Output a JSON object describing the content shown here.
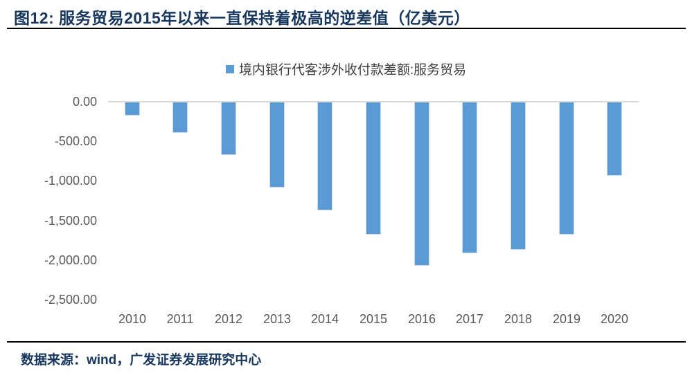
{
  "header": {
    "title": "图12:  服务贸易2015年以来一直保持着极高的逆差值（亿美元）"
  },
  "footer": {
    "source": "数据来源：wind，广发证券发展研究中心"
  },
  "colors": {
    "title_text": "#17375E",
    "rule": "#000000",
    "bar_fill": "#5B9BD5",
    "bar_border": "#C9DCF2",
    "axis_line": "#D9D9D9",
    "tick_text": "#595959",
    "legend_text": "#3F3F3F"
  },
  "chart_data": {
    "type": "bar",
    "title": "图12:  服务贸易2015年以来一直保持着极高的逆差值（亿美元）",
    "legend_label": "境内银行代客涉外收付款差额:服务贸易",
    "legend_position": "top-center",
    "categories": [
      "2010",
      "2011",
      "2012",
      "2013",
      "2014",
      "2015",
      "2016",
      "2017",
      "2018",
      "2019",
      "2020"
    ],
    "series": [
      {
        "name": "境内银行代客涉外收付款差额:服务贸易",
        "values": [
          -175,
          -395,
          -670,
          -1085,
          -1370,
          -1680,
          -2075,
          -1915,
          -1870,
          -1675,
          -935
        ]
      }
    ],
    "ylabel": "",
    "xlabel": "",
    "ylim": [
      -2500,
      0
    ],
    "y_ticks": [
      "0.00",
      "-500.00",
      "-1,000.00",
      "-1,500.00",
      "-2,000.00",
      "-2,500.00"
    ],
    "grid": false,
    "unit": "亿美元"
  }
}
